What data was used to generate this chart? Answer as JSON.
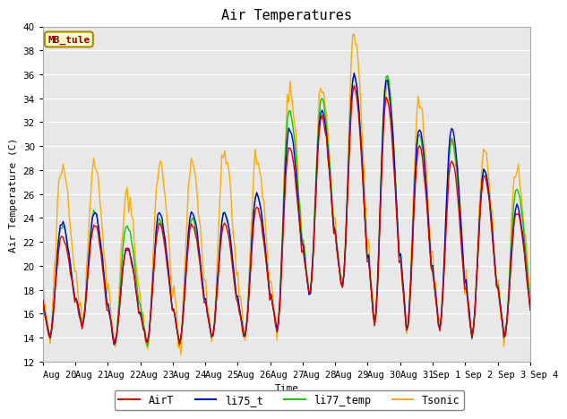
{
  "title": "Air Temperatures",
  "xlabel": "Time",
  "ylabel": "Air Temperature (C)",
  "ylim": [
    12,
    40
  ],
  "yticks": [
    12,
    14,
    16,
    18,
    20,
    22,
    24,
    26,
    28,
    30,
    32,
    34,
    36,
    38,
    40
  ],
  "station_label": "MB_tule",
  "background_color": "#e0e0e0",
  "plot_bg_color": "#e8e8e8",
  "grid_color": "#ffffff",
  "colors": {
    "AirT": "#dd0000",
    "li75_t": "#0000dd",
    "li77_temp": "#00cc00",
    "Tsonic": "#ffaa00"
  },
  "x_tick_labels": [
    "Aug 20",
    "Aug 21",
    "Aug 22",
    "Aug 23",
    "Aug 24",
    "Aug 25",
    "Aug 26",
    "Aug 27",
    "Aug 28",
    "Aug 29",
    "Aug 30",
    "Aug 31",
    "Sep 1",
    "Sep 2",
    "Sep 3",
    "Sep 4"
  ],
  "num_points": 336
}
